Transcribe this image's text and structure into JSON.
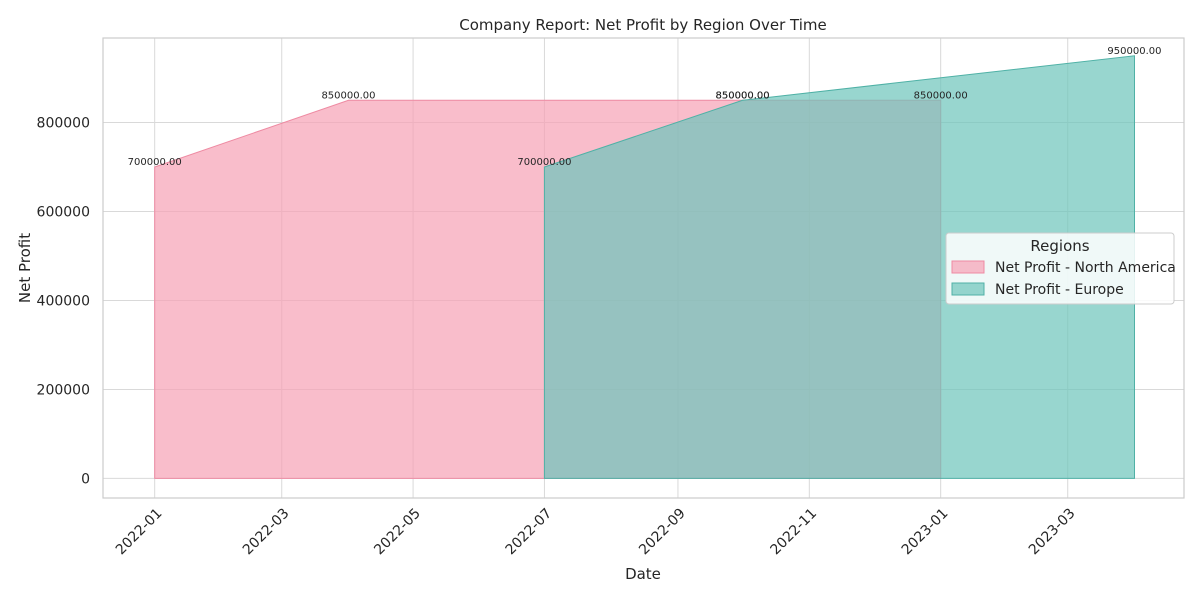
{
  "chart_data": {
    "type": "area",
    "title": "Company Report: Net Profit by Region Over Time",
    "xlabel": "Date",
    "ylabel": "Net Profit",
    "xlim": [
      "2021-12-08",
      "2023-04-24"
    ],
    "ylim": [
      -44000,
      990000
    ],
    "x_ticks": [
      "2022-01",
      "2022-03",
      "2022-05",
      "2022-07",
      "2022-09",
      "2022-11",
      "2023-01",
      "2023-03"
    ],
    "x_tick_dates": [
      "2022-01-01",
      "2022-03-01",
      "2022-05-01",
      "2022-07-01",
      "2022-09-01",
      "2022-11-01",
      "2023-01-01",
      "2023-03-01"
    ],
    "y_ticks": [
      0,
      200000,
      400000,
      600000,
      800000
    ],
    "grid": true,
    "legend": {
      "title": "Regions",
      "position": "center-right"
    },
    "series": [
      {
        "name": "Net Profit - North America",
        "color": "#f7a1b5",
        "edge_color": "#ee8aa2",
        "points": [
          {
            "x": "2022-01-01",
            "y": 700000,
            "label": "700000.00"
          },
          {
            "x": "2022-04-01",
            "y": 850000,
            "label": "850000.00"
          },
          {
            "x": "2022-10-01",
            "y": 850000,
            "label": "850000.00"
          },
          {
            "x": "2023-01-01",
            "y": 850000,
            "label": "850000.00"
          }
        ]
      },
      {
        "name": "Net Profit - Europe",
        "color": "#6cc5bb",
        "edge_color": "#4fb1a6",
        "points": [
          {
            "x": "2022-07-01",
            "y": 700000,
            "label": "700000.00"
          },
          {
            "x": "2022-10-01",
            "y": 850000,
            "label": "850000.00"
          },
          {
            "x": "2023-04-01",
            "y": 950000,
            "label": "950000.00"
          }
        ]
      }
    ]
  }
}
